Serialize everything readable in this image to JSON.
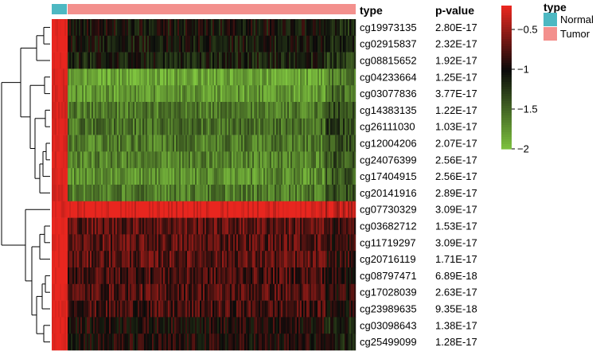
{
  "chart_data": {
    "type": "heatmap",
    "title": "",
    "column_header": "type",
    "pvalue_header": "p-value",
    "rows": [
      {
        "probe": "cg19973135",
        "pvalue": "2.80E-17",
        "normal": -0.2,
        "tumor": -1.02
      },
      {
        "probe": "cg02915837",
        "pvalue": "2.32E-17",
        "normal": -0.2,
        "tumor": -1.05
      },
      {
        "probe": "cg08815652",
        "pvalue": "1.92E-17",
        "normal": -0.2,
        "tumor": -1.1
      },
      {
        "probe": "cg04233664",
        "pvalue": "1.25E-17",
        "normal": -0.25,
        "tumor": -1.85
      },
      {
        "probe": "cg03077836",
        "pvalue": "3.77E-17",
        "normal": -0.25,
        "tumor": -1.75
      },
      {
        "probe": "cg14383135",
        "pvalue": "1.22E-17",
        "normal": -0.25,
        "tumor": -1.6
      },
      {
        "probe": "cg26111030",
        "pvalue": "1.03E-17",
        "normal": -0.25,
        "tumor": -1.55
      },
      {
        "probe": "cg12004206",
        "pvalue": "2.07E-17",
        "normal": -0.25,
        "tumor": -1.6
      },
      {
        "probe": "cg24076399",
        "pvalue": "2.56E-17",
        "normal": -0.25,
        "tumor": -1.65
      },
      {
        "probe": "cg17404915",
        "pvalue": "2.56E-17",
        "normal": -0.25,
        "tumor": -1.7
      },
      {
        "probe": "cg20141916",
        "pvalue": "2.89E-17",
        "normal": -0.25,
        "tumor": -1.6
      },
      {
        "probe": "cg07730329",
        "pvalue": "3.09E-17",
        "normal": -0.25,
        "tumor": -0.15
      },
      {
        "probe": "cg03682712",
        "pvalue": "1.53E-17",
        "normal": -0.2,
        "tumor": -0.7
      },
      {
        "probe": "cg11719297",
        "pvalue": "3.09E-17",
        "normal": -0.2,
        "tumor": -0.72
      },
      {
        "probe": "cg20716119",
        "pvalue": "1.71E-17",
        "normal": -0.2,
        "tumor": -0.72
      },
      {
        "probe": "cg08797471",
        "pvalue": "6.89E-18",
        "normal": -0.2,
        "tumor": -0.78
      },
      {
        "probe": "cg17028039",
        "pvalue": "2.63E-17",
        "normal": -0.2,
        "tumor": -0.75
      },
      {
        "probe": "cg23989635",
        "pvalue": "9.35E-18",
        "normal": -0.2,
        "tumor": -0.8
      },
      {
        "probe": "cg03098643",
        "pvalue": "1.38E-17",
        "normal": -0.2,
        "tumor": -0.95
      },
      {
        "probe": "cg25499099",
        "pvalue": "1.28E-17",
        "normal": -0.2,
        "tumor": -0.95
      }
    ],
    "column_groups": [
      {
        "name": "Normal",
        "color": "#4db8c2"
      },
      {
        "name": "Tumor",
        "color": "#f3908d"
      }
    ],
    "color_scale": {
      "min": -2,
      "max": -0.2,
      "low_color": "#7fc43f",
      "mid_color": "#0a0a0a",
      "high_color": "#e8261f",
      "ticks": [
        -0.5,
        -1,
        -1.5,
        -2
      ],
      "tick_labels": [
        "−0.5",
        "−1",
        "−1.5",
        "−2"
      ]
    },
    "legend": {
      "title": "type",
      "entries": [
        "Normal",
        "Tumor"
      ],
      "position": "right"
    }
  }
}
